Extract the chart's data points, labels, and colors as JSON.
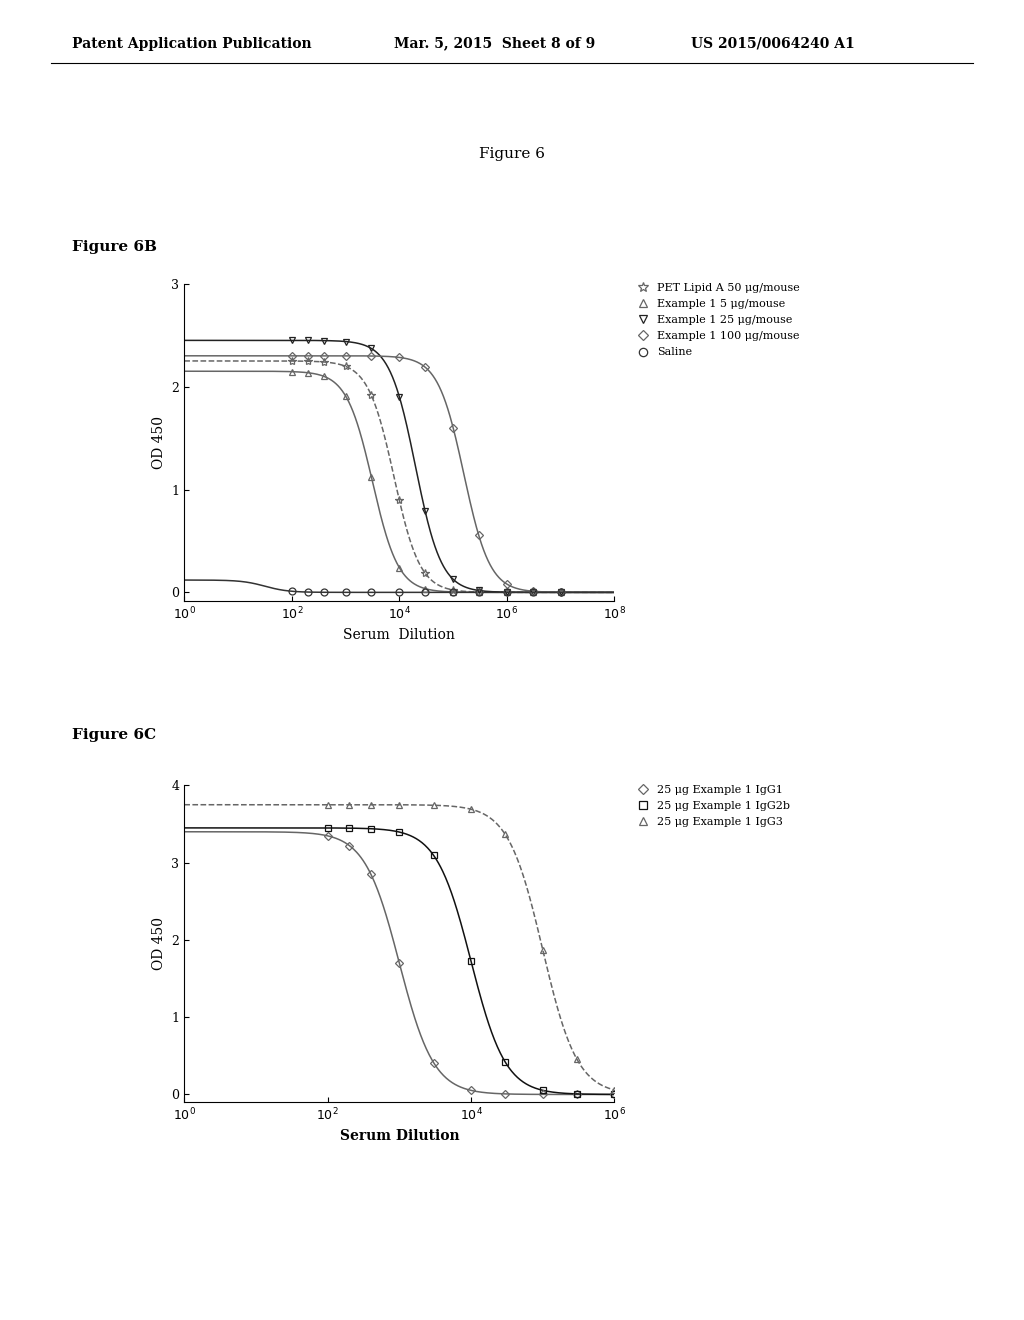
{
  "page_header_left": "Patent Application Publication",
  "page_header_center": "Mar. 5, 2015  Sheet 8 of 9",
  "page_header_right": "US 2015/0064240 A1",
  "figure_title": "Figure 6",
  "fig6b_label": "Figure 6B",
  "fig6c_label": "Figure 6C",
  "fig6b": {
    "xlabel": "Serum  Dilution",
    "ylabel": "OD 450",
    "xlim": [
      1,
      100000000.0
    ],
    "ylim": [
      -0.08,
      3.0
    ],
    "yticks": [
      0,
      1,
      2,
      3
    ],
    "series": [
      {
        "label": "PET Lipid A 50 μg/mouse",
        "color": "#666666",
        "marker": "*",
        "markersize": 6,
        "linestyle": "--",
        "plateau": 2.25,
        "inflection": 3.9,
        "slope": 1.8
      },
      {
        "label": "Example 1 5 μg/mouse",
        "color": "#666666",
        "marker": "^",
        "markersize": 5,
        "linestyle": "-",
        "plateau": 2.15,
        "inflection": 3.5,
        "slope": 1.8
      },
      {
        "label": "Example 1 25 μg/mouse",
        "color": "#222222",
        "marker": "v",
        "markersize": 5,
        "linestyle": "-",
        "plateau": 2.45,
        "inflection": 4.3,
        "slope": 1.8
      },
      {
        "label": "Example 1 100 μg/mouse",
        "color": "#666666",
        "marker": "D",
        "markersize": 4,
        "linestyle": "-",
        "plateau": 2.3,
        "inflection": 5.2,
        "slope": 1.8
      },
      {
        "label": "Saline",
        "color": "#333333",
        "marker": "o",
        "markersize": 5,
        "linestyle": "-",
        "plateau": 0.12,
        "inflection": 1.5,
        "slope": 2.0
      }
    ]
  },
  "fig6c": {
    "xlabel": "Serum Dilution",
    "ylabel": "OD 450",
    "xlim": [
      1,
      1000000.0
    ],
    "ylim": [
      -0.1,
      4.0
    ],
    "yticks": [
      0,
      1,
      2,
      3,
      4
    ],
    "series": [
      {
        "label": "25 μg Example 1 IgG1",
        "color": "#666666",
        "marker": "D",
        "markersize": 4,
        "linestyle": "-",
        "plateau": 3.4,
        "inflection": 3.0,
        "slope": 1.8
      },
      {
        "label": "25 μg Example 1 IgG2b",
        "color": "#111111",
        "marker": "s",
        "markersize": 5,
        "linestyle": "-",
        "plateau": 3.45,
        "inflection": 4.0,
        "slope": 1.8
      },
      {
        "label": "25 μg Example 1 IgG3",
        "color": "#666666",
        "marker": "^",
        "markersize": 5,
        "linestyle": "--",
        "plateau": 3.75,
        "inflection": 5.0,
        "slope": 1.8
      }
    ]
  },
  "background_color": "#ffffff",
  "text_color": "#000000",
  "font_family": "DejaVu Serif"
}
